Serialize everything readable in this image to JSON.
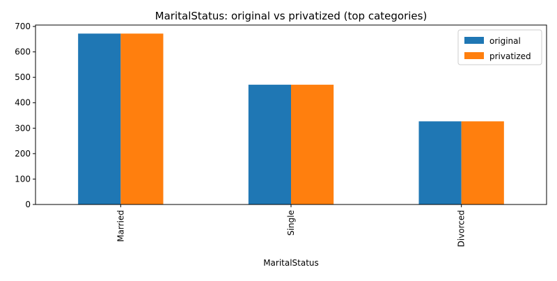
{
  "chart_data": {
    "type": "bar",
    "title": "MaritalStatus: original vs privatized (top categories)",
    "xlabel": "MaritalStatus",
    "ylabel": "",
    "categories": [
      "Married",
      "Single",
      "Divorced"
    ],
    "series": [
      {
        "name": "original",
        "values": [
          672,
          471,
          327
        ],
        "color": "#1f77b4"
      },
      {
        "name": "privatized",
        "values": [
          672,
          471,
          327
        ],
        "color": "#ff7f0e"
      }
    ],
    "ylim": [
      0,
      705.6
    ],
    "yticks": [
      0,
      100,
      200,
      300,
      400,
      500,
      600,
      700
    ],
    "grid": false,
    "legend_position": "top-right"
  }
}
